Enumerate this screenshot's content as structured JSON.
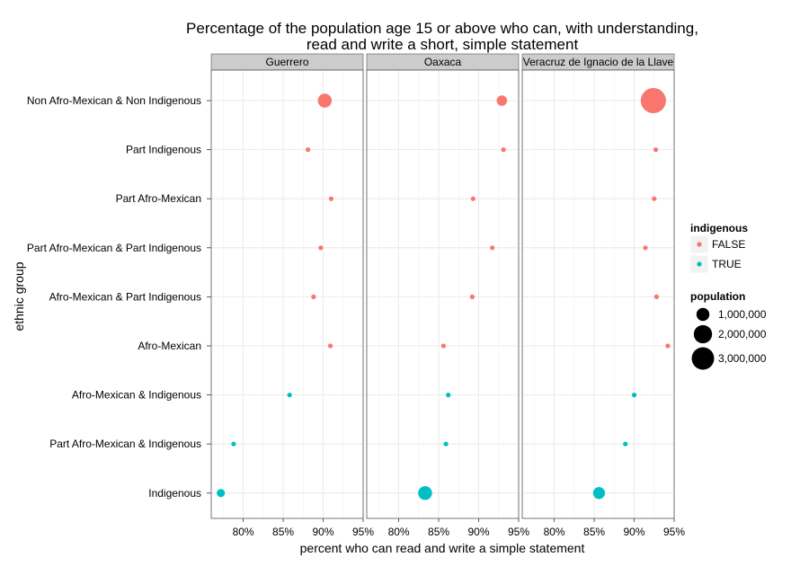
{
  "chart_data": {
    "type": "scatter",
    "title_line1": "Percentage of the population age 15 or above who can, with understanding,",
    "title_line2": "read and write a short, simple statement",
    "xlabel": "percent who can read and write a simple statement",
    "ylabel": "ethnic group",
    "xlim": [
      76,
      95
    ],
    "x_ticks": [
      80,
      85,
      90,
      95
    ],
    "x_tick_labels": [
      "80%",
      "85%",
      "90%",
      "95%"
    ],
    "grid": true,
    "legend_position": "right",
    "categories": [
      "Non Afro-Mexican & Non Indigenous",
      "Part Indigenous",
      "Part Afro-Mexican",
      "Part Afro-Mexican & Part Indigenous",
      "Afro-Mexican & Part Indigenous",
      "Afro-Mexican",
      "Afro-Mexican & Indigenous",
      "Part Afro-Mexican & Indigenous",
      "Indigenous"
    ],
    "facets": [
      {
        "name": "Guerrero",
        "points": [
          {
            "category": "Non Afro-Mexican & Non Indigenous",
            "x": 90.2,
            "indigenous": "FALSE",
            "population": 1150000
          },
          {
            "category": "Part Indigenous",
            "x": 88.1,
            "indigenous": "FALSE",
            "population": 100000
          },
          {
            "category": "Part Afro-Mexican",
            "x": 91.0,
            "indigenous": "FALSE",
            "population": 60000
          },
          {
            "category": "Part Afro-Mexican & Part Indigenous",
            "x": 89.7,
            "indigenous": "FALSE",
            "population": 80000
          },
          {
            "category": "Afro-Mexican & Part Indigenous",
            "x": 88.8,
            "indigenous": "FALSE",
            "population": 70000
          },
          {
            "category": "Afro-Mexican",
            "x": 90.9,
            "indigenous": "FALSE",
            "population": 120000
          },
          {
            "category": "Afro-Mexican & Indigenous",
            "x": 85.8,
            "indigenous": "TRUE",
            "population": 120000
          },
          {
            "category": "Part Afro-Mexican & Indigenous",
            "x": 78.8,
            "indigenous": "TRUE",
            "population": 40000
          },
          {
            "category": "Indigenous",
            "x": 77.2,
            "indigenous": "TRUE",
            "population": 400000
          }
        ]
      },
      {
        "name": "Oaxaca",
        "points": [
          {
            "category": "Non Afro-Mexican & Non Indigenous",
            "x": 92.9,
            "indigenous": "FALSE",
            "population": 650000
          },
          {
            "category": "Part Indigenous",
            "x": 93.1,
            "indigenous": "FALSE",
            "population": 80000
          },
          {
            "category": "Part Afro-Mexican",
            "x": 89.3,
            "indigenous": "FALSE",
            "population": 80000
          },
          {
            "category": "Part Afro-Mexican & Part Indigenous",
            "x": 91.7,
            "indigenous": "FALSE",
            "population": 60000
          },
          {
            "category": "Afro-Mexican & Part Indigenous",
            "x": 89.2,
            "indigenous": "FALSE",
            "population": 80000
          },
          {
            "category": "Afro-Mexican",
            "x": 85.6,
            "indigenous": "FALSE",
            "population": 70000
          },
          {
            "category": "Afro-Mexican & Indigenous",
            "x": 86.2,
            "indigenous": "TRUE",
            "population": 100000
          },
          {
            "category": "Part Afro-Mexican & Indigenous",
            "x": 85.9,
            "indigenous": "TRUE",
            "population": 60000
          },
          {
            "category": "Indigenous",
            "x": 83.3,
            "indigenous": "TRUE",
            "population": 1150000
          }
        ]
      },
      {
        "name": "Veracruz de Ignacio de la Llave",
        "points": [
          {
            "category": "Non Afro-Mexican & Non Indigenous",
            "x": 92.4,
            "indigenous": "FALSE",
            "population": 3800000
          },
          {
            "category": "Part Indigenous",
            "x": 92.7,
            "indigenous": "FALSE",
            "population": 120000
          },
          {
            "category": "Part Afro-Mexican",
            "x": 92.5,
            "indigenous": "FALSE",
            "population": 90000
          },
          {
            "category": "Part Afro-Mexican & Part Indigenous",
            "x": 91.4,
            "indigenous": "FALSE",
            "population": 100000
          },
          {
            "category": "Afro-Mexican & Part Indigenous",
            "x": 92.8,
            "indigenous": "FALSE",
            "population": 80000
          },
          {
            "category": "Afro-Mexican",
            "x": 94.2,
            "indigenous": "FALSE",
            "population": 90000
          },
          {
            "category": "Afro-Mexican & Indigenous",
            "x": 90.0,
            "indigenous": "TRUE",
            "population": 130000
          },
          {
            "category": "Part Afro-Mexican & Indigenous",
            "x": 88.9,
            "indigenous": "TRUE",
            "population": 60000
          },
          {
            "category": "Indigenous",
            "x": 85.6,
            "indigenous": "TRUE",
            "population": 850000
          }
        ]
      }
    ],
    "legend": {
      "color_title": "indigenous",
      "color_entries": [
        {
          "label": "FALSE",
          "color": "#F8766D"
        },
        {
          "label": "TRUE",
          "color": "#00BFC4"
        }
      ],
      "size_title": "population",
      "size_entries": [
        {
          "label": "1,000,000",
          "value": 1000000
        },
        {
          "label": "2,000,000",
          "value": 2000000
        },
        {
          "label": "3,000,000",
          "value": 3000000
        }
      ]
    }
  }
}
